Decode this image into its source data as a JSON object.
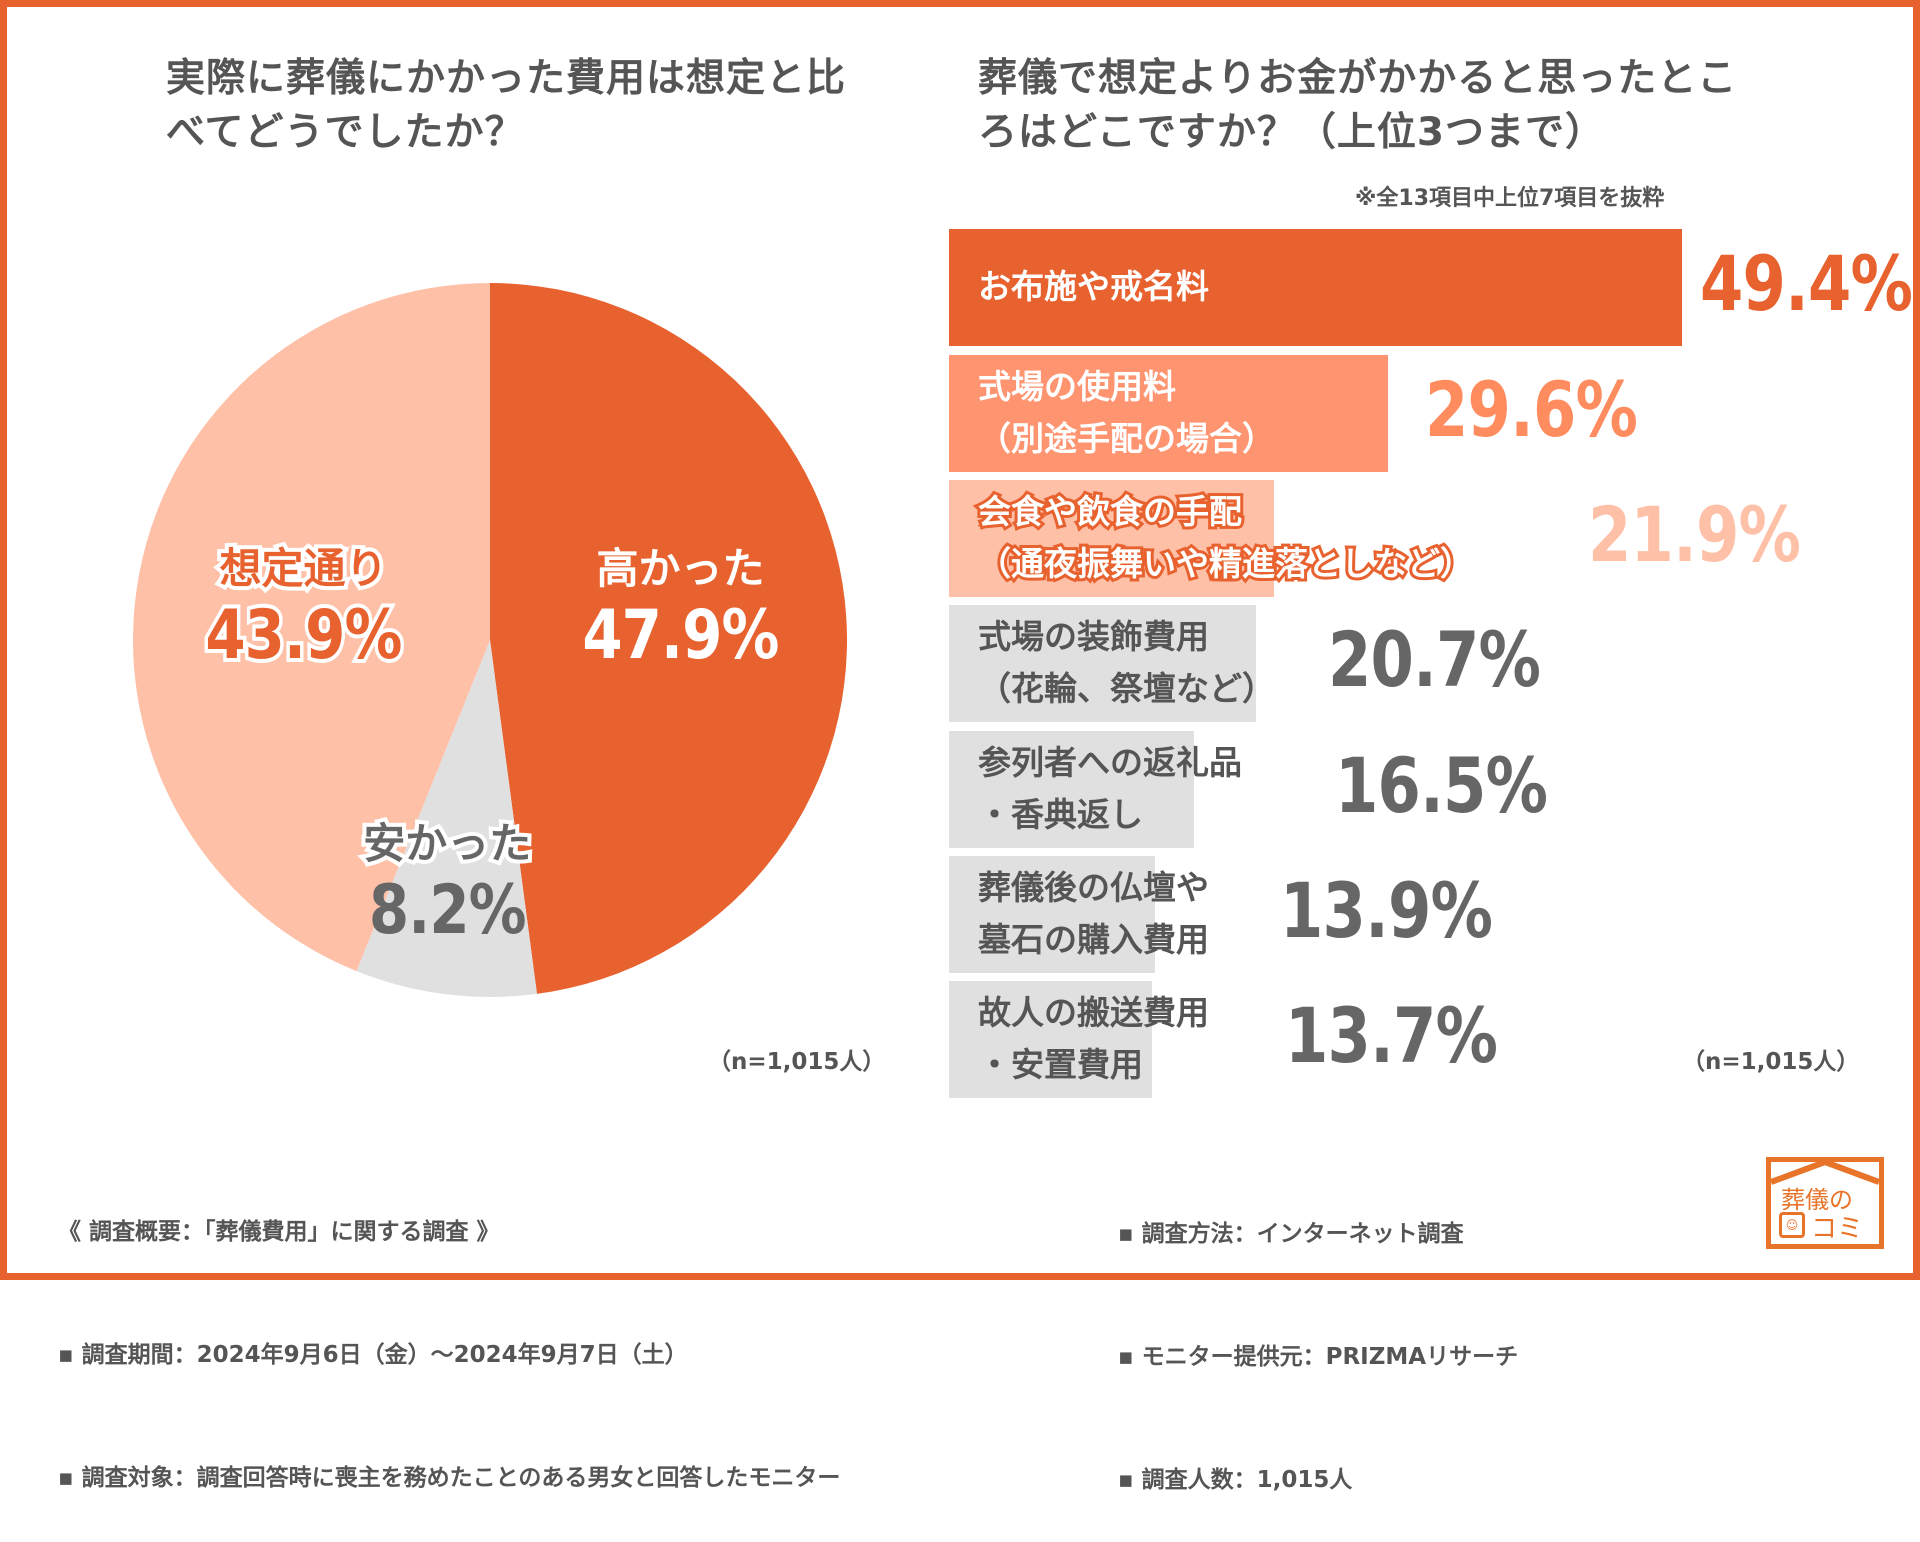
{
  "chart_data": [
    {
      "type": "pie",
      "title": "実際に葬儀にかかった費用は想定と比べてどうでしたか？",
      "slices": [
        {
          "label": "高かった",
          "value": 47.9,
          "display": "47.9%",
          "color": "#E8622F"
        },
        {
          "label": "安かった",
          "value": 8.2,
          "display": "8.2%",
          "color": "#E0E0E0"
        },
        {
          "label": "想定通り",
          "value": 43.9,
          "display": "43.9%",
          "color": "#FFC0A8"
        }
      ],
      "note": "（n=1,015人）"
    },
    {
      "type": "bar",
      "orientation": "horizontal",
      "title": "葬儀で想定よりお金がかかると思ったところはどこですか？（上位3つまで）",
      "subtitle": "※全13項目中上位7項目を抜粋",
      "categories": [
        "お布施や戒名料",
        "式場の使用料\n（別途手配の場合）",
        "会食や飲食の手配\n（通夜振舞いや精進落としなど）",
        "式場の装飾費用\n（花輪、祭壇など）",
        "参列者への返礼品\n・香典返し",
        "葬儀後の仏壇や\n墓石の購入費用",
        "故人の搬送費用\n・安置費用"
      ],
      "values": [
        49.4,
        29.6,
        21.9,
        20.7,
        16.5,
        13.9,
        13.7
      ],
      "value_labels": [
        "49.4%",
        "29.6%",
        "21.9%",
        "20.7%",
        "16.5%",
        "13.9%",
        "13.7%"
      ],
      "bar_colors": [
        "#E8622F",
        "#FF9470",
        "#FFC0A8",
        "#E0E0E0",
        "#E0E0E0",
        "#E0E0E0",
        "#E0E0E0"
      ],
      "value_colors": [
        "#E8622F",
        "#FF8C5E",
        "#FFC0A8",
        "#666666",
        "#666666",
        "#666666",
        "#666666"
      ],
      "note": "（n=1,015人）"
    }
  ],
  "footer": {
    "left": [
      "《 調査概要：「葬儀費用」に関する調査 》",
      "▪ 調査期間：2024年9月6日（金）〜2024年9月7日（土）",
      "▪ 調査対象：調査回答時に喪主を務めたことのある男女と回答したモニター"
    ],
    "right": [
      "▪ 調査方法：インターネット調査",
      "▪ モニター提供元：PRIZMAリサーチ",
      "▪ 調査人数：1,015人"
    ]
  },
  "logo": {
    "line1": "葬儀の",
    "line2": "コミ"
  }
}
